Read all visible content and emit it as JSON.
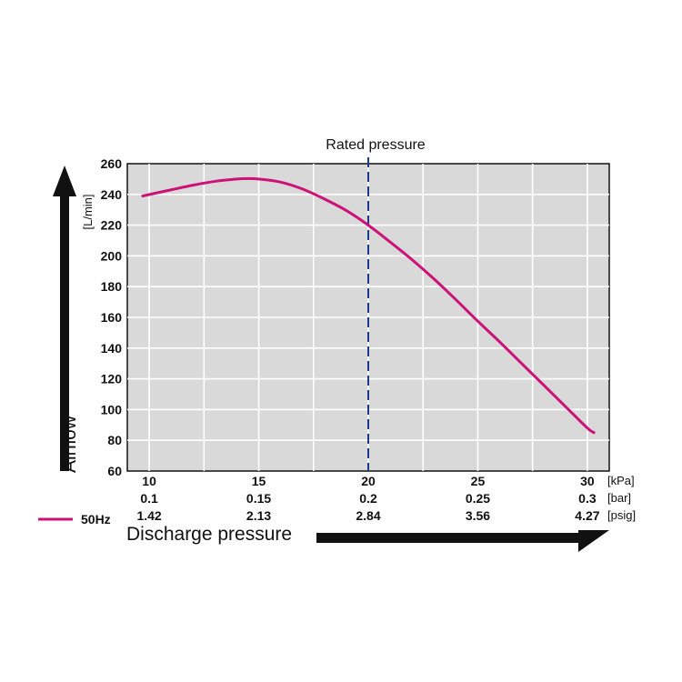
{
  "chart_data": {
    "type": "line",
    "ylabel": "Airflow",
    "yunit": "[L/min]",
    "xlabel": "Discharge pressure",
    "ylim": [
      60,
      260
    ],
    "yticks": [
      "60",
      "80",
      "100",
      "120",
      "140",
      "160",
      "180",
      "200",
      "220",
      "240",
      "260"
    ],
    "xlim": [
      9,
      31
    ],
    "xtick_rows": [
      {
        "unit": "[kPa]",
        "labels": [
          "10",
          "15",
          "20",
          "25",
          "30"
        ]
      },
      {
        "unit": "[bar]",
        "labels": [
          "0.1",
          "0.15",
          "0.2",
          "0.25",
          "0.3"
        ]
      },
      {
        "unit": "[psig]",
        "labels": [
          "1.42",
          "2.13",
          "2.84",
          "3.56",
          "4.27"
        ]
      }
    ],
    "xtick_values": [
      10,
      15,
      20,
      25,
      30
    ],
    "grid": true,
    "reference_line": {
      "x": 20,
      "label": "Rated pressure",
      "color": "#1a3a8a"
    },
    "series": [
      {
        "name": "50Hz",
        "color": "#cc1177",
        "x": [
          9.7,
          11,
          12,
          13,
          14,
          14.5,
          15,
          16,
          17,
          18,
          19,
          20,
          21,
          22,
          23,
          24,
          25,
          26,
          27,
          28,
          29,
          30,
          30.3
        ],
        "y": [
          239,
          243,
          246,
          248.5,
          250,
          250.3,
          250,
          248,
          243.5,
          237,
          229.5,
          220,
          209,
          197.5,
          185,
          171.5,
          157.5,
          144,
          130,
          116,
          102,
          88,
          85
        ]
      }
    ]
  }
}
